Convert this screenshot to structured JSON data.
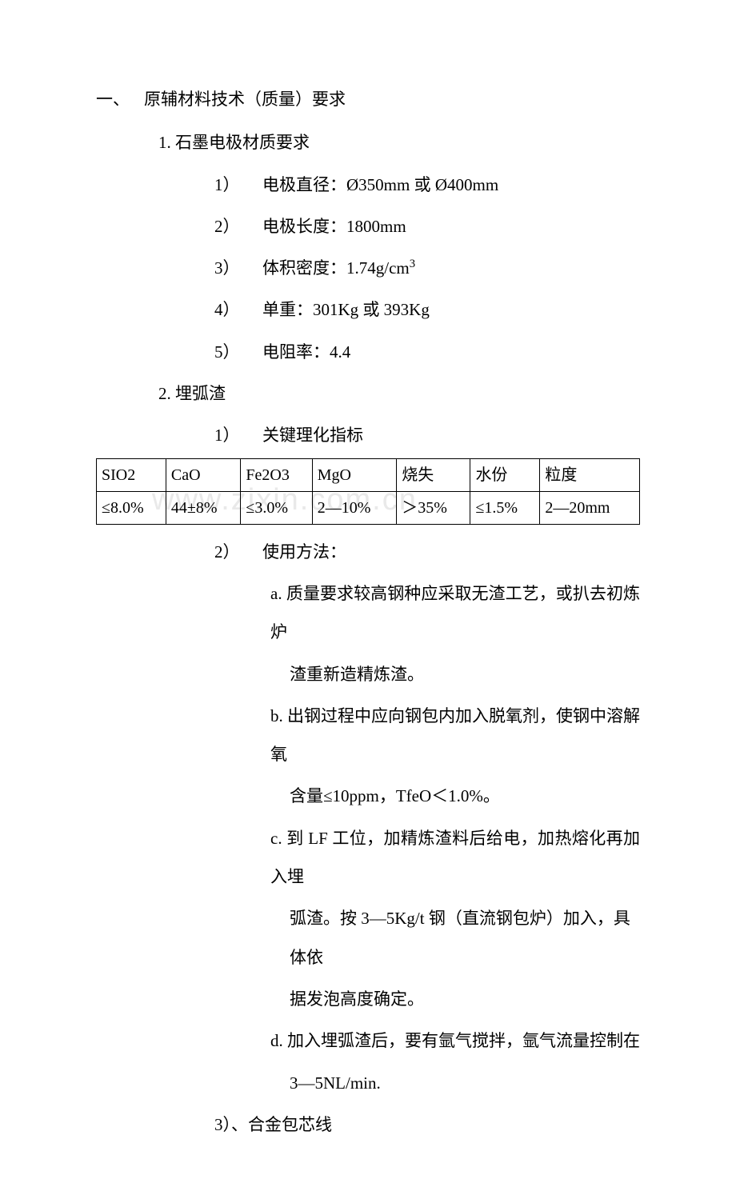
{
  "watermark": "www.zixin.com.cn",
  "section": {
    "num": "一、",
    "title": "原辅材料技术（质量）要求"
  },
  "sub1": {
    "num": "1.",
    "title": "石墨电极材质要求",
    "items": [
      {
        "num": "1）",
        "text": "电极直径：Ø350mm 或 Ø400mm"
      },
      {
        "num": "2）",
        "text": "电极长度：1800mm"
      },
      {
        "num": "3）",
        "text": "体积密度：1.74g/cm"
      },
      {
        "num": "4）",
        "text": "单重：301Kg 或 393Kg"
      },
      {
        "num": "5）",
        "text": "电阻率：4.4"
      }
    ],
    "sup3": "3"
  },
  "sub2": {
    "num": "2.",
    "title": "埋弧渣",
    "item1": {
      "num": "1）",
      "text": "关键理化指标"
    },
    "table": {
      "headers": [
        "SIO2",
        "CaO",
        "Fe2O3",
        "MgO",
        "烧失",
        "水份",
        "粒度"
      ],
      "row": [
        "≤8.0%",
        "44±8%",
        "≤3.0%",
        "2—10%",
        "＞35%",
        "≤1.5%",
        "2—20mm"
      ]
    },
    "item2": {
      "num": "2）",
      "text": "使用方法："
    },
    "steps": [
      {
        "num": "a.",
        "l1": "质量要求较高钢种应采取无渣工艺，或扒去初炼炉",
        "l2": "渣重新造精炼渣。"
      },
      {
        "num": "b.",
        "l1": "出钢过程中应向钢包内加入脱氧剂，使钢中溶解氧",
        "l2": "含量≤10ppm，TfeO＜1.0%。"
      },
      {
        "num": "c.",
        "l1": "到 LF 工位，加精炼渣料后给电，加热熔化再加入埋",
        "l2": "弧渣。按 3—5Kg/t 钢（直流钢包炉）加入，具体依",
        "l3": "据发泡高度确定。"
      },
      {
        "num": "d.",
        "l1": "加入埋弧渣后，要有氩气搅拌，氩气流量控制在",
        "l2": "3—5NL/min."
      }
    ],
    "item3": {
      "num": "3）、",
      "text": "合金包芯线"
    }
  }
}
